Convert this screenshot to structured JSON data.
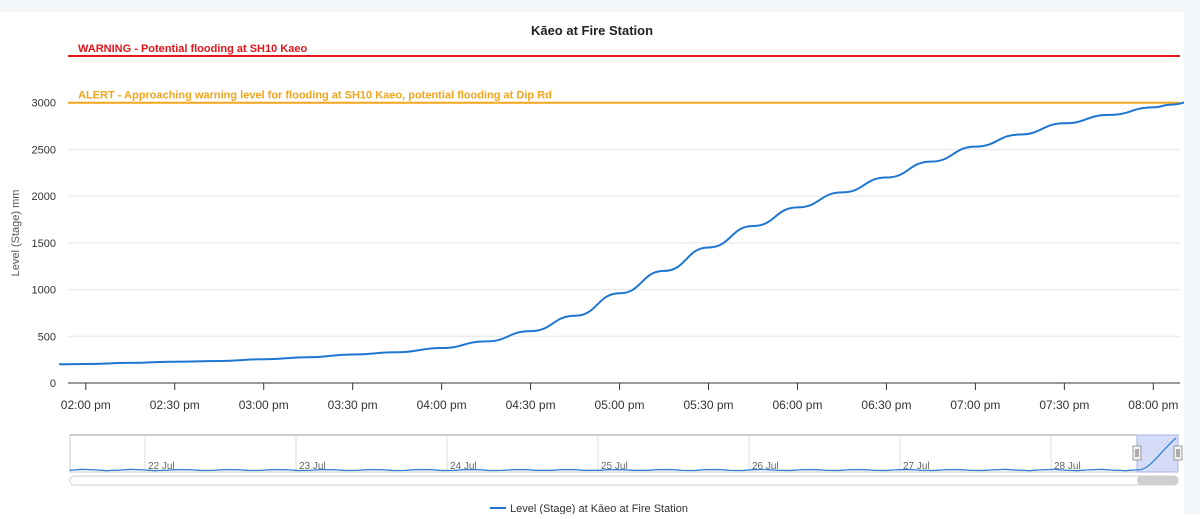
{
  "chart_data": {
    "type": "line",
    "title": "Kāeo at Fire Station",
    "ylabel": "Level (Stage) mm",
    "xlabel": "",
    "ylim": [
      0,
      3500
    ],
    "y_ticks": [
      0,
      500,
      1000,
      1500,
      2000,
      2500,
      3000
    ],
    "x_ticks": [
      "02:00 pm",
      "02:30 pm",
      "03:00 pm",
      "03:30 pm",
      "04:00 pm",
      "04:30 pm",
      "05:00 pm",
      "05:30 pm",
      "06:00 pm",
      "06:30 pm",
      "07:00 pm",
      "07:30 pm",
      "08:00 pm"
    ],
    "x_range_hours": [
      13.9,
      20.15
    ],
    "grid": true,
    "legend_position": "bottom-center",
    "series": [
      {
        "name": "Level (Stage) at Kāeo at Fire Station",
        "color": "#1f77d0",
        "x_hours": [
          13.85,
          14.0,
          14.25,
          14.5,
          14.75,
          15.0,
          15.25,
          15.5,
          15.75,
          16.0,
          16.25,
          16.5,
          16.75,
          17.0,
          17.25,
          17.5,
          17.75,
          18.0,
          18.25,
          18.5,
          18.75,
          19.0,
          19.25,
          19.5,
          19.75,
          20.0,
          20.1,
          20.25
        ],
        "values": [
          200,
          203,
          215,
          228,
          235,
          255,
          275,
          305,
          330,
          375,
          445,
          555,
          720,
          960,
          1200,
          1450,
          1680,
          1880,
          2040,
          2200,
          2370,
          2530,
          2660,
          2780,
          2870,
          2950,
          2980,
          3030
        ]
      }
    ],
    "thresholds": [
      {
        "label": "WARNING - Potential flooding at SH10 Kaeo",
        "value": 3500,
        "color": "#e8141b"
      },
      {
        "label": "ALERT - Approaching warning level for flooding at SH10 Kaeo, potential flooding at Dip Rd",
        "value": 3000,
        "color": "#f2a51d"
      }
    ],
    "navigator": {
      "labels": [
        "22 Jul",
        "23 Jul",
        "24 Jul",
        "25 Jul",
        "26 Jul",
        "27 Jul",
        "28 Jul"
      ],
      "selection_color": "#c9d3f5"
    }
  }
}
